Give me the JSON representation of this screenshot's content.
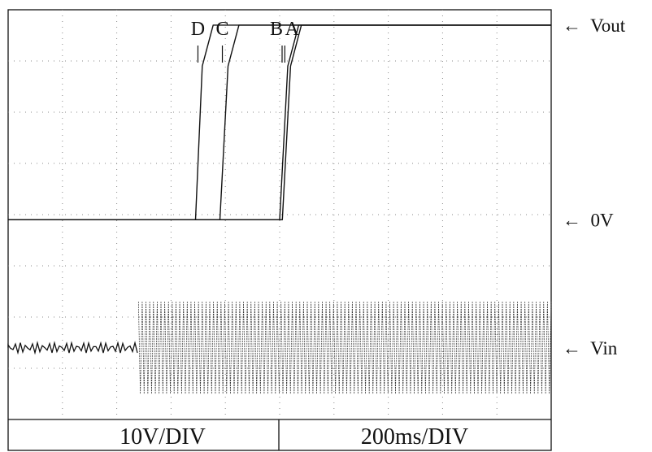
{
  "chart_data": {
    "type": "line",
    "title": "",
    "scale": {
      "vertical": "10V/DIV",
      "horizontal": "200ms/DIV"
    },
    "grid": true,
    "grid_divisions": {
      "x": 10,
      "y": 8
    },
    "channel_labels": [
      {
        "name": "Vout",
        "text": "←  Vout",
        "level_div": 7.7
      },
      {
        "name": "zero",
        "text": "←  0V",
        "level_div": 3.9
      },
      {
        "name": "Vin",
        "text": "←  Vin",
        "level_div": 1.4
      }
    ],
    "units": {
      "x": "ms",
      "y": "V"
    },
    "xlim": [
      0,
      2000
    ],
    "ylim": [
      -39,
      41
    ],
    "series": [
      {
        "name": "A",
        "x": [
          0,
          1010,
          1040,
          1080,
          2000
        ],
        "y": [
          0,
          0,
          30,
          38,
          38
        ]
      },
      {
        "name": "B",
        "x": [
          0,
          1000,
          1030,
          1070,
          2000
        ],
        "y": [
          0,
          0,
          30,
          38,
          38
        ]
      },
      {
        "name": "C",
        "x": [
          0,
          780,
          810,
          850,
          2000
        ],
        "y": [
          0,
          0,
          30,
          38,
          38
        ]
      },
      {
        "name": "D",
        "x": [
          0,
          690,
          715,
          755,
          2000
        ],
        "y": [
          0,
          0,
          30,
          38,
          38
        ]
      }
    ],
    "input_signal": {
      "name": "Vin",
      "level_v": -25,
      "idle_ripple_v": 1,
      "start_ms": 480,
      "amplitude_v": 9,
      "cycles": 110
    },
    "annotations": [
      {
        "label": "D",
        "x": 690
      },
      {
        "label": "C",
        "x": 780
      },
      {
        "label": "B",
        "x": 1000
      },
      {
        "label": "A",
        "x": 1010
      }
    ]
  }
}
